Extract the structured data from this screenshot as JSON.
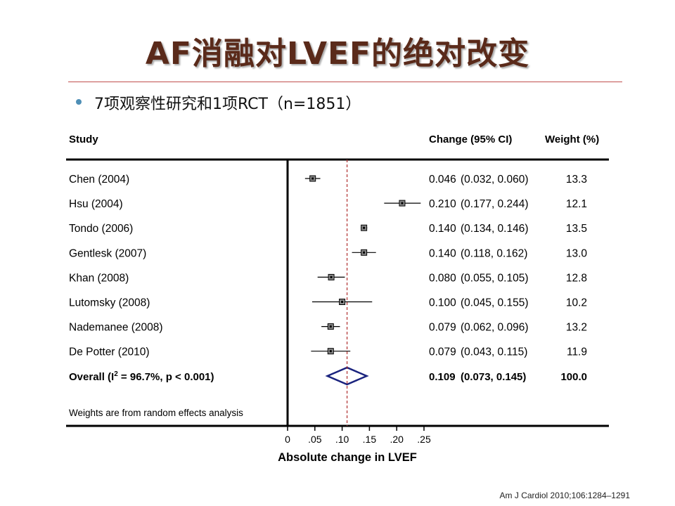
{
  "slide": {
    "title": "AF消融对LVEF的绝对改变",
    "bullet": "7项观察性研究和1项RCT（n=1851）",
    "citation": "Am J Cardiol 2010;106:1284–1291"
  },
  "chart_data": {
    "type": "forest",
    "headers": {
      "study": "Study",
      "change": "Change (95% CI)",
      "weight": "Weight (%)"
    },
    "xlabel": "Absolute change in LVEF",
    "xlim": [
      0,
      0.25
    ],
    "xticks": [
      0,
      0.05,
      0.1,
      0.15,
      0.2,
      0.25
    ],
    "xtick_labels": [
      "0",
      ".05",
      ".10",
      ".15",
      ".20",
      ".25"
    ],
    "reference_line": 0.109,
    "studies": [
      {
        "name": "Chen (2004)",
        "est": 0.046,
        "lo": 0.032,
        "hi": 0.06,
        "change": "0.046",
        "ci": "(0.032, 0.060)",
        "weight": "13.3"
      },
      {
        "name": "Hsu (2004)",
        "est": 0.21,
        "lo": 0.177,
        "hi": 0.244,
        "change": "0.210",
        "ci": "(0.177, 0.244)",
        "weight": "12.1"
      },
      {
        "name": "Tondo (2006)",
        "est": 0.14,
        "lo": 0.134,
        "hi": 0.146,
        "change": "0.140",
        "ci": "(0.134, 0.146)",
        "weight": "13.5"
      },
      {
        "name": "Gentlesk (2007)",
        "est": 0.14,
        "lo": 0.118,
        "hi": 0.162,
        "change": "0.140",
        "ci": "(0.118, 0.162)",
        "weight": "13.0"
      },
      {
        "name": "Khan (2008)",
        "est": 0.08,
        "lo": 0.055,
        "hi": 0.105,
        "change": "0.080",
        "ci": "(0.055, 0.105)",
        "weight": "12.8"
      },
      {
        "name": "Lutomsky (2008)",
        "est": 0.1,
        "lo": 0.045,
        "hi": 0.155,
        "change": "0.100",
        "ci": "(0.045, 0.155)",
        "weight": "10.2"
      },
      {
        "name": "Nademanee (2008)",
        "est": 0.079,
        "lo": 0.062,
        "hi": 0.096,
        "change": "0.079",
        "ci": "(0.062, 0.096)",
        "weight": "13.2"
      },
      {
        "name": "De Potter (2010)",
        "est": 0.079,
        "lo": 0.043,
        "hi": 0.115,
        "change": "0.079",
        "ci": "(0.043, 0.115)",
        "weight": "11.9"
      }
    ],
    "overall": {
      "label_pre": "Overall  (I",
      "label_sup": "2",
      "label_post": " = 96.7%, p < 0.001)",
      "est": 0.109,
      "lo": 0.073,
      "hi": 0.145,
      "change": "0.109",
      "ci": "(0.073, 0.145)",
      "weight": "100.0"
    },
    "footnote": "Weights are from random effects analysis",
    "colors": {
      "diamond": "#1a237e",
      "reference_line": "#b03030",
      "axis": "#000000"
    }
  }
}
